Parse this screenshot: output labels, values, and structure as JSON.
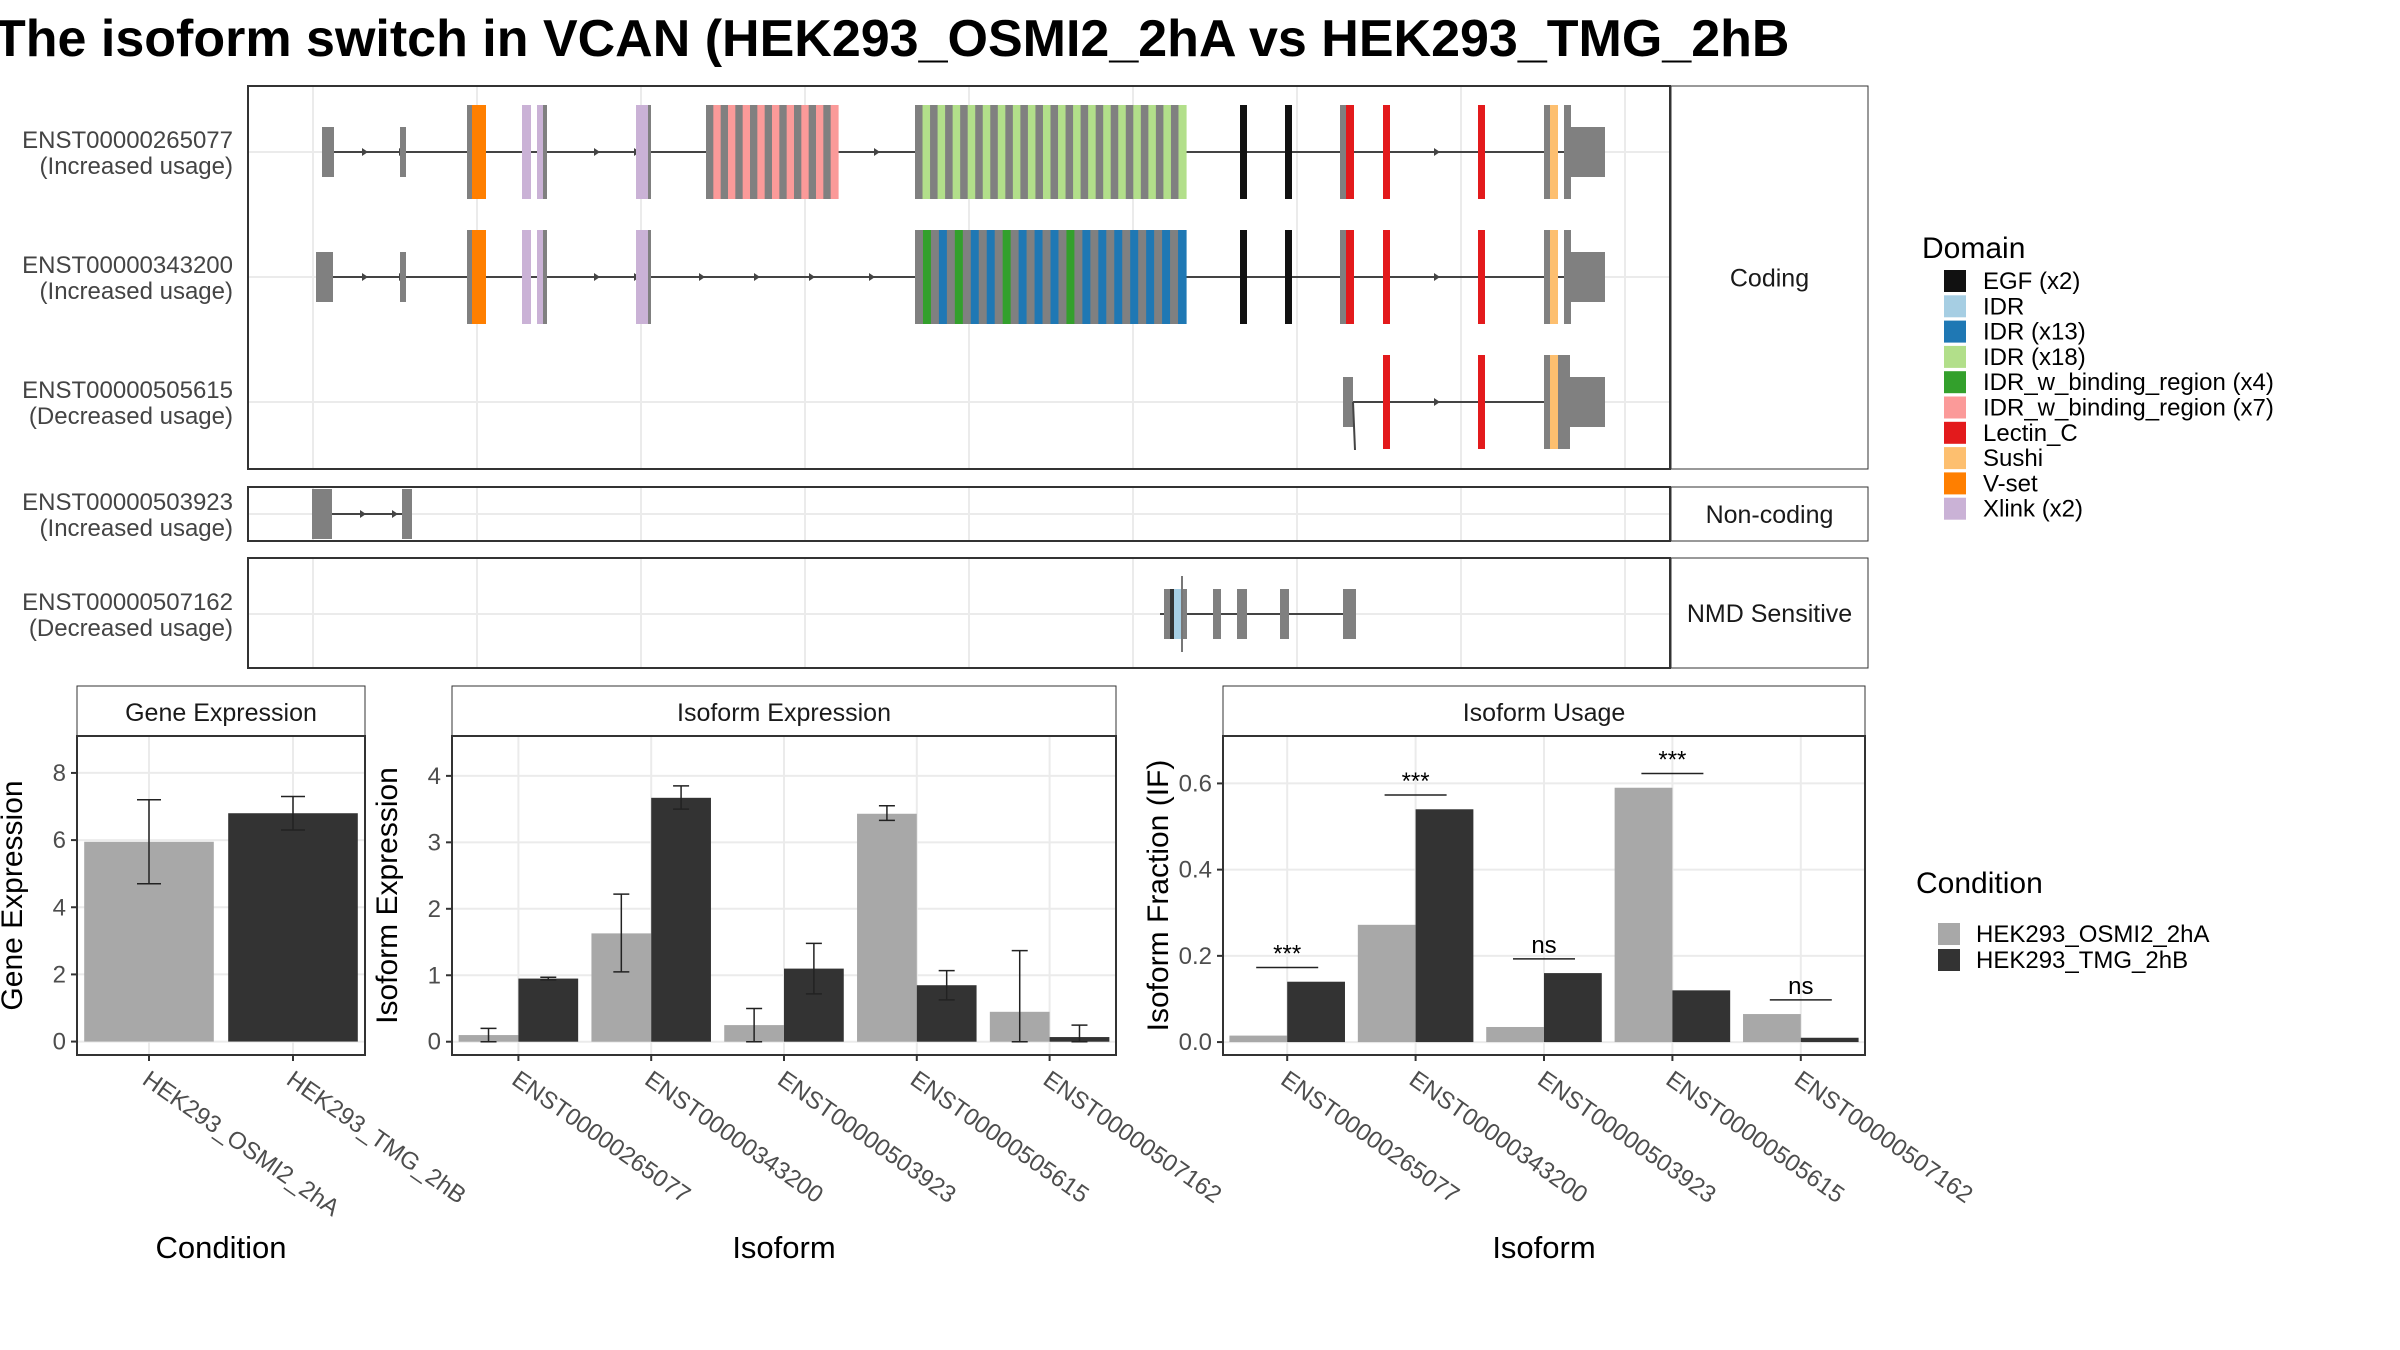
{
  "title": "The isoform switch in VCAN (HEK293_OSMI2_2hA vs HEK293_TMG_2hB",
  "colors": {
    "intron_line": "#444444",
    "exon_grey": "#808080",
    "bar_light": "#a8a8a8",
    "bar_dark": "#333333",
    "grid": "#ebebeb",
    "panel_border": "#333333",
    "strip_fill": "#ffffff"
  },
  "structure": {
    "groups": [
      {
        "label": "Coding",
        "transcripts": [
          {
            "id": "ENST00000265077",
            "usage": "(Increased usage)"
          },
          {
            "id": "ENST00000343200",
            "usage": "(Increased usage)"
          },
          {
            "id": "ENST00000505615",
            "usage": "(Decreased usage)"
          }
        ]
      },
      {
        "label": "Non-coding",
        "transcripts": [
          {
            "id": "ENST00000503923",
            "usage": "(Increased usage)"
          }
        ]
      },
      {
        "label": "NMD Sensitive",
        "transcripts": [
          {
            "id": "ENST00000507162",
            "usage": "(Decreased usage)"
          }
        ]
      }
    ]
  },
  "domain_legend": {
    "title": "Domain",
    "items": [
      {
        "label": "EGF (x2)",
        "color": "#111111",
        "icon": "egf-swatch"
      },
      {
        "label": "IDR",
        "color": "#a6cee3",
        "icon": "idr-swatch"
      },
      {
        "label": "IDR (x13)",
        "color": "#1f78b4",
        "icon": "idr-x13-swatch"
      },
      {
        "label": "IDR (x18)",
        "color": "#b2df8a",
        "icon": "idr-x18-swatch"
      },
      {
        "label": "IDR_w_binding_region (x4)",
        "color": "#33a02c",
        "icon": "idr-binding-x4-swatch"
      },
      {
        "label": "IDR_w_binding_region (x7)",
        "color": "#fb9a99",
        "icon": "idr-binding-x7-swatch"
      },
      {
        "label": "Lectin_C",
        "color": "#e31a1c",
        "icon": "lectin-swatch"
      },
      {
        "label": "Sushi",
        "color": "#fdbf6f",
        "icon": "sushi-swatch"
      },
      {
        "label": "V-set",
        "color": "#ff7f00",
        "icon": "vset-swatch"
      },
      {
        "label": "Xlink (x2)",
        "color": "#cab2d6",
        "icon": "xlink-swatch"
      }
    ]
  },
  "condition_legend": {
    "title": "Condition",
    "items": [
      {
        "label": "HEK293_OSMI2_2hA",
        "color": "#a8a8a8"
      },
      {
        "label": "HEK293_TMG_2hB",
        "color": "#333333"
      }
    ]
  },
  "chart_data": [
    {
      "type": "bar",
      "title": "Gene Expression",
      "xlabel": "Condition",
      "ylabel": "Gene Expression",
      "categories": [
        "HEK293_OSMI2_2hA",
        "HEK293_TMG_2hB"
      ],
      "values": [
        5.95,
        6.8
      ],
      "error_low": [
        4.7,
        6.3
      ],
      "error_high": [
        7.2,
        7.3
      ],
      "ylim": [
        -0.4,
        9.1
      ],
      "yticks": [
        0,
        2,
        4,
        6,
        8
      ],
      "grid": true
    },
    {
      "type": "bar",
      "title": "Isoform Expression",
      "xlabel": "Isoform",
      "ylabel": "Isoform Expression",
      "categories": [
        "ENST00000265077",
        "ENST00000343200",
        "ENST00000503923",
        "ENST00000505615",
        "ENST00000507162"
      ],
      "series": [
        {
          "name": "HEK293_OSMI2_2hA",
          "values": [
            0.1,
            1.63,
            0.25,
            3.43,
            0.45
          ],
          "error_low": [
            0.0,
            1.05,
            0.0,
            3.33,
            0.0
          ],
          "error_high": [
            0.2,
            2.22,
            0.5,
            3.55,
            1.37
          ]
        },
        {
          "name": "HEK293_TMG_2hB",
          "values": [
            0.95,
            3.67,
            1.1,
            0.85,
            0.07
          ],
          "error_low": [
            0.93,
            3.5,
            0.72,
            0.63,
            0.0
          ],
          "error_high": [
            0.97,
            3.85,
            1.48,
            1.07,
            0.25
          ]
        }
      ],
      "ylim": [
        -0.2,
        4.6
      ],
      "yticks": [
        0,
        1,
        2,
        3,
        4
      ],
      "grid": true
    },
    {
      "type": "bar",
      "title": "Isoform Usage",
      "xlabel": "Isoform",
      "ylabel": "Isoform Fraction (IF)",
      "categories": [
        "ENST00000265077",
        "ENST00000343200",
        "ENST00000503923",
        "ENST00000505615",
        "ENST00000507162"
      ],
      "series": [
        {
          "name": "HEK293_OSMI2_2hA",
          "values": [
            0.015,
            0.272,
            0.035,
            0.59,
            0.065
          ]
        },
        {
          "name": "HEK293_TMG_2hB",
          "values": [
            0.14,
            0.54,
            0.16,
            0.12,
            0.01
          ]
        }
      ],
      "significance": [
        "***",
        "***",
        "ns",
        "***",
        "ns"
      ],
      "sig_line_y": [
        0.173,
        0.573,
        0.193,
        0.623,
        0.098
      ],
      "ylim": [
        -0.03,
        0.71
      ],
      "yticks": [
        0.0,
        0.2,
        0.4,
        0.6
      ],
      "grid": true
    }
  ]
}
